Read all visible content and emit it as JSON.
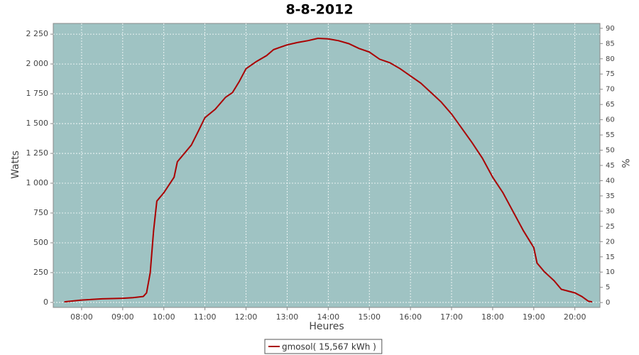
{
  "chart_data": {
    "type": "line",
    "title": "8-8-2012",
    "x_label": "Heures",
    "y_label": "Watts",
    "y2_label": "%",
    "x": [
      7.58,
      8.0,
      8.5,
      9.0,
      9.25,
      9.5,
      9.58,
      9.67,
      9.75,
      9.83,
      10.0,
      10.25,
      10.33,
      10.5,
      10.67,
      10.83,
      11.0,
      11.25,
      11.5,
      11.67,
      11.83,
      12.0,
      12.25,
      12.5,
      12.67,
      12.83,
      13.0,
      13.25,
      13.5,
      13.75,
      14.0,
      14.25,
      14.5,
      14.75,
      15.0,
      15.25,
      15.5,
      15.75,
      16.0,
      16.25,
      16.5,
      16.75,
      17.0,
      17.25,
      17.5,
      17.75,
      18.0,
      18.25,
      18.5,
      18.75,
      19.0,
      19.08,
      19.25,
      19.5,
      19.67,
      20.0,
      20.17,
      20.33,
      20.42
    ],
    "series": [
      {
        "name": "gmosol( 15,567 kWh )",
        "color": "#aa0000",
        "values": [
          5,
          20,
          30,
          35,
          40,
          50,
          80,
          250,
          600,
          850,
          920,
          1050,
          1180,
          1250,
          1320,
          1430,
          1550,
          1620,
          1720,
          1760,
          1850,
          1960,
          2020,
          2070,
          2120,
          2140,
          2160,
          2180,
          2195,
          2215,
          2210,
          2195,
          2170,
          2130,
          2100,
          2040,
          2010,
          1960,
          1900,
          1840,
          1760,
          1680,
          1580,
          1460,
          1340,
          1210,
          1050,
          920,
          760,
          600,
          460,
          330,
          260,
          180,
          110,
          80,
          50,
          10,
          5
        ]
      }
    ],
    "xlim": [
      7.31,
      20.61
    ],
    "xticks": [
      {
        "value": 8,
        "label": "08:00"
      },
      {
        "value": 9,
        "label": "09:00"
      },
      {
        "value": 10,
        "label": "10:00"
      },
      {
        "value": 11,
        "label": "11:00"
      },
      {
        "value": 12,
        "label": "12:00"
      },
      {
        "value": 13,
        "label": "13:00"
      },
      {
        "value": 14,
        "label": "14:00"
      },
      {
        "value": 15,
        "label": "15:00"
      },
      {
        "value": 16,
        "label": "16:00"
      },
      {
        "value": 17,
        "label": "17:00"
      },
      {
        "value": 18,
        "label": "18:00"
      },
      {
        "value": 19,
        "label": "19:00"
      },
      {
        "value": 20,
        "label": "20:00"
      }
    ],
    "ylim": [
      -42,
      2340
    ],
    "yticks": [
      0,
      250,
      500,
      750,
      {
        "value": 1000,
        "label": "1 000"
      },
      {
        "value": 1250,
        "label": "1 250"
      },
      {
        "value": 1500,
        "label": "1 500"
      },
      {
        "value": 1750,
        "label": "1 750"
      },
      {
        "value": 2000,
        "label": "2 000"
      },
      {
        "value": 2250,
        "label": "2 250"
      }
    ],
    "y2lim": [
      -1.6,
      91.6
    ],
    "y2ticks": [
      0,
      5,
      10,
      15,
      20,
      25,
      30,
      35,
      40,
      45,
      50,
      55,
      60,
      65,
      70,
      75,
      80,
      85,
      90
    ],
    "grid": true,
    "background": "#9fc3c3",
    "legend": "bottom"
  }
}
